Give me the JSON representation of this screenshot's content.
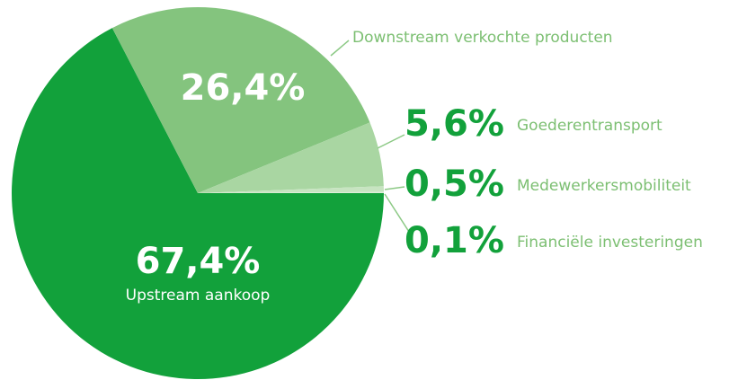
{
  "chart_data": {
    "type": "pie",
    "categories": [
      "Upstream aankoop",
      "Downstream verkochte producten",
      "Goederentransport",
      "Medewerkersmobiliteit",
      "Financiële investeringen"
    ],
    "values": [
      67.4,
      26.4,
      5.6,
      0.5,
      0.1
    ],
    "value_labels": [
      "67,4%",
      "26,4%",
      "5,6%",
      "0,5%",
      "0,1%"
    ],
    "colors": [
      "#12a13b",
      "#84c47e",
      "#a9d6a2",
      "#c7e4c1",
      "#dcefd8"
    ]
  }
}
